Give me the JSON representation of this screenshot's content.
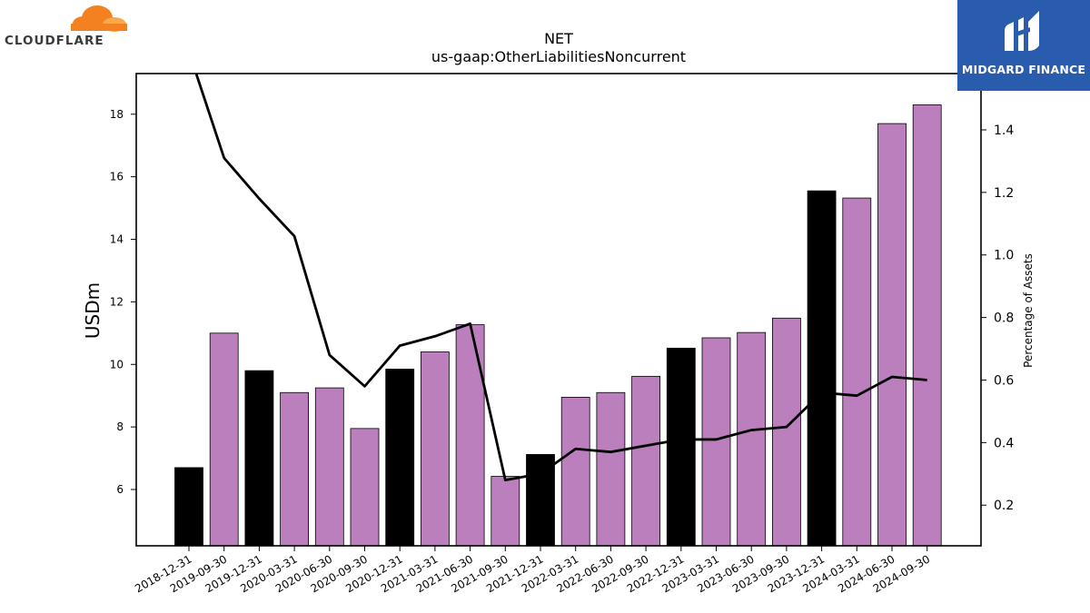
{
  "logos": {
    "left_text": "CLOUDFLARE",
    "right_text": "MIDGARD FINANCE"
  },
  "colors": {
    "bar_purple": "#bb7fbd",
    "bar_black": "#000000",
    "line": "#000000",
    "cf_orange": "#f48120",
    "midgard_blue": "#2a5cae"
  },
  "chart_data": {
    "type": "bar",
    "title": "NET",
    "subtitle": "us-gaap:OtherLiabilitiesNoncurrent",
    "ylabel": "USDm",
    "y2label": "Percentage of Assets",
    "ylim": [
      4.2,
      19.3
    ],
    "y2lim": [
      0.07,
      1.58
    ],
    "yticks": [
      6,
      8,
      10,
      12,
      14,
      16,
      18
    ],
    "y2ticks": [
      0.2,
      0.4,
      0.6,
      0.8,
      1.0,
      1.2,
      1.4
    ],
    "grid": false,
    "categories": [
      "2018-12-31",
      "2019-09-30",
      "2019-12-31",
      "2020-03-31",
      "2020-06-30",
      "2020-09-30",
      "2020-12-31",
      "2021-03-31",
      "2021-06-30",
      "2021-09-30",
      "2021-12-31",
      "2022-03-31",
      "2022-06-30",
      "2022-09-30",
      "2022-12-31",
      "2023-03-31",
      "2023-06-30",
      "2023-09-30",
      "2023-12-31",
      "2024-03-31",
      "2024-06-30",
      "2024-09-30"
    ],
    "series": [
      {
        "kind": "bar",
        "values": [
          6.7,
          11.0,
          9.8,
          9.1,
          9.25,
          7.95,
          9.85,
          10.4,
          11.27,
          6.42,
          7.12,
          8.95,
          9.1,
          9.62,
          10.52,
          10.85,
          11.02,
          11.48,
          15.55,
          15.32,
          17.7,
          18.3
        ],
        "annual": [
          true,
          false,
          true,
          false,
          false,
          false,
          true,
          false,
          false,
          false,
          true,
          false,
          false,
          false,
          true,
          false,
          false,
          false,
          true,
          false,
          false,
          false
        ]
      },
      {
        "kind": "line",
        "axis": "right",
        "values": [
          1.65,
          1.31,
          1.18,
          1.06,
          0.68,
          0.58,
          0.71,
          0.74,
          0.78,
          0.28,
          0.3,
          0.38,
          0.37,
          0.39,
          0.41,
          0.41,
          0.44,
          0.45,
          0.56,
          0.55,
          0.61,
          0.6
        ]
      }
    ]
  }
}
